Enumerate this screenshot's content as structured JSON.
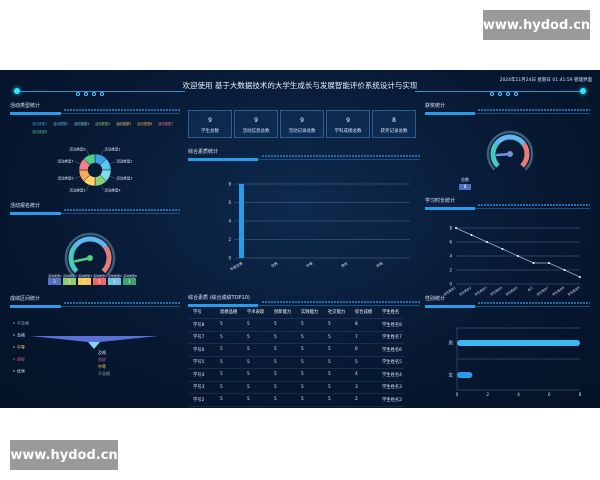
{
  "watermark": "www.hydod.cn",
  "header": {
    "title": "欢迎使用 基于大数据技术的大学生成长与发展智能评价系统设计与实现",
    "datetime": "2024年11月24日 星期日 01:41:59",
    "user": "管理界面"
  },
  "stats": [
    {
      "value": "9",
      "label": "学生总数"
    },
    {
      "value": "9",
      "label": "活动信息总数"
    },
    {
      "value": "9",
      "label": "活动记录总数"
    },
    {
      "value": "9",
      "label": "学科成绩总数"
    },
    {
      "value": "8",
      "label": "获奖记录总数"
    }
  ],
  "sections": {
    "activity_type": "活动类型统计",
    "activity_signup": "活动报名统计",
    "score_range": "成绩区间统计",
    "quality": "综合素质统计",
    "top10": "综合素质 (综合成绩TOP10)",
    "awards": "获奖统计",
    "study_time": "学习时长统计",
    "gender": "性别统计"
  },
  "colors": {
    "accent": "#2a9be8",
    "bg": "#071831"
  },
  "chart_data": [
    {
      "type": "pie",
      "id": "activity_type",
      "donut": true,
      "categories": [
        "活动类型1",
        "活动类型2",
        "活动类型3",
        "活动类型4",
        "活动类型5",
        "活动类型6",
        "活动类型7",
        "活动类型8"
      ],
      "values": [
        1,
        1,
        1,
        1,
        1,
        1,
        1,
        1
      ],
      "colors": [
        "#3aa0e8",
        "#5cc8f0",
        "#7fdbe8",
        "#8ed07a",
        "#ffd466",
        "#f6a85a",
        "#f27e8a",
        "#4dcf84"
      ],
      "legend": "top"
    },
    {
      "type": "gauge",
      "id": "activity_signup",
      "categories": [
        "活动类型1",
        "活动类型2",
        "活动类型3",
        "活动类型4",
        "活动类型5",
        "活动类型6"
      ],
      "values": [
        2,
        1,
        1,
        1,
        1,
        1
      ],
      "colors": [
        "#5470c6",
        "#91cc75",
        "#fac858",
        "#ee6666",
        "#73c0de",
        "#3ba272"
      ]
    },
    {
      "type": "funnel",
      "id": "score_range",
      "categories": [
        "不及格",
        "及格",
        "中等",
        "良好",
        "优秀"
      ],
      "label_colors": [
        "#8aa0c0",
        "#cfe3ff",
        "#ffd466",
        "#e06a9a",
        "#cfe3ff"
      ]
    },
    {
      "type": "bar",
      "id": "quality",
      "categories": [
        "非常优秀",
        "优秀",
        "中等",
        "良好",
        "合格"
      ],
      "values": [
        8,
        0,
        0,
        0,
        0
      ],
      "ylim": [
        0,
        8
      ],
      "yticks": [
        0,
        2,
        4,
        6,
        8
      ]
    },
    {
      "type": "gauge",
      "id": "awards",
      "categories": [
        "总数"
      ],
      "values": [
        8
      ]
    },
    {
      "type": "line",
      "id": "study_time",
      "categories": [
        "学生姓名1",
        "学生姓名2",
        "学生姓名3",
        "学生姓名4",
        "学生姓名5",
        "张三",
        "学生姓名7",
        "学生姓名8",
        "学生姓名9"
      ],
      "values": [
        8,
        7,
        6,
        5,
        4,
        3,
        3,
        2,
        1
      ],
      "ylim": [
        0,
        8
      ],
      "yticks": [
        0,
        2,
        4,
        6,
        8
      ]
    },
    {
      "type": "bar",
      "id": "gender",
      "orientation": "horizontal",
      "categories": [
        "男",
        "女"
      ],
      "values": [
        8,
        1
      ],
      "xlim": [
        0,
        8
      ],
      "xticks": [
        0,
        2,
        4,
        6,
        8
      ]
    }
  ],
  "table": {
    "columns": [
      "学号",
      "思想品德",
      "学术表现",
      "创新能力",
      "实践能力",
      "社交能力",
      "综合成绩",
      "学生姓名"
    ],
    "rows": [
      [
        "学号8",
        "5",
        "5",
        "5",
        "5",
        "5",
        "8",
        "学生姓名8"
      ],
      [
        "学号7",
        "5",
        "5",
        "5",
        "5",
        "5",
        "7",
        "学生姓名7"
      ],
      [
        "学号6",
        "5",
        "5",
        "5",
        "5",
        "5",
        "6",
        "学生姓名6"
      ],
      [
        "学号5",
        "5",
        "5",
        "5",
        "5",
        "5",
        "5",
        "学生姓名5"
      ],
      [
        "学号4",
        "5",
        "5",
        "5",
        "5",
        "5",
        "4",
        "学生姓名4"
      ],
      [
        "学号3",
        "5",
        "5",
        "5",
        "5",
        "5",
        "3",
        "学生姓名3"
      ],
      [
        "学号2",
        "5",
        "5",
        "5",
        "5",
        "5",
        "2",
        "学生姓名2"
      ]
    ]
  }
}
